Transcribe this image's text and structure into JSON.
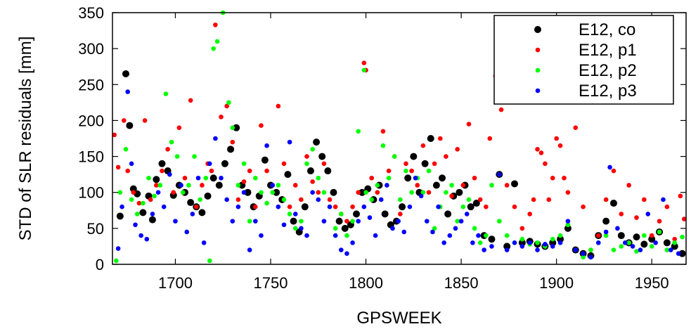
{
  "chart_data": {
    "type": "scatter",
    "title": "",
    "xlabel": "GPSWEEK",
    "ylabel": "STD of SLR residuals [mm]",
    "xlim": [
      1667,
      1968
    ],
    "ylim": [
      0,
      350
    ],
    "xticks": [
      1700,
      1750,
      1800,
      1850,
      1900,
      1950
    ],
    "yticks": [
      0,
      50,
      100,
      150,
      200,
      250,
      300,
      350
    ],
    "grid": false,
    "legend_position": "top-right",
    "series": [
      {
        "name": "E12, co",
        "color": "#000000",
        "x": [
          1671,
          1674,
          1676,
          1678,
          1680,
          1683,
          1686,
          1688,
          1690,
          1693,
          1696,
          1699,
          1702,
          1705,
          1708,
          1711,
          1714,
          1717,
          1720,
          1723,
          1726,
          1729,
          1732,
          1735,
          1738,
          1741,
          1744,
          1747,
          1750,
          1753,
          1756,
          1759,
          1762,
          1765,
          1768,
          1771,
          1774,
          1777,
          1780,
          1783,
          1786,
          1789,
          1792,
          1795,
          1798,
          1801,
          1804,
          1807,
          1810,
          1813,
          1816,
          1819,
          1822,
          1825,
          1828,
          1831,
          1834,
          1837,
          1840,
          1843,
          1846,
          1849,
          1852,
          1855,
          1858,
          1862,
          1866,
          1870,
          1874,
          1878,
          1882,
          1886,
          1890,
          1894,
          1898,
          1902,
          1906,
          1910,
          1914,
          1918,
          1922,
          1926,
          1930,
          1934,
          1938,
          1942,
          1946,
          1950,
          1954,
          1958,
          1962,
          1966
        ],
        "y": [
          67,
          265,
          193,
          105,
          98,
          72,
          95,
          62,
          118,
          140,
          130,
          96,
          110,
          100,
          86,
          80,
          72,
          95,
          120,
          110,
          140,
          160,
          190,
          110,
          100,
          80,
          95,
          145,
          110,
          100,
          90,
          125,
          60,
          45,
          80,
          130,
          170,
          150,
          130,
          100,
          60,
          50,
          55,
          70,
          100,
          105,
          90,
          110,
          70,
          55,
          60,
          80,
          120,
          150,
          100,
          140,
          175,
          110,
          120,
          70,
          95,
          100,
          110,
          80,
          85,
          40,
          35,
          125,
          25,
          112,
          30,
          32,
          28,
          25,
          30,
          35,
          50,
          20,
          15,
          12,
          40,
          60,
          85,
          40,
          30,
          38,
          28,
          35,
          45,
          30,
          25,
          15
        ]
      },
      {
        "name": "E12, p1",
        "color": "#ff0000",
        "x": [
          1668,
          1670,
          1673,
          1675,
          1678,
          1681,
          1684,
          1687,
          1690,
          1693,
          1696,
          1699,
          1702,
          1705,
          1708,
          1711,
          1714,
          1717,
          1719,
          1721,
          1724,
          1727,
          1730,
          1733,
          1736,
          1739,
          1742,
          1745,
          1748,
          1751,
          1754,
          1757,
          1760,
          1763,
          1766,
          1769,
          1772,
          1775,
          1778,
          1781,
          1784,
          1787,
          1790,
          1793,
          1796,
          1799,
          1800,
          1803,
          1806,
          1809,
          1812,
          1815,
          1818,
          1821,
          1824,
          1827,
          1830,
          1833,
          1836,
          1839,
          1842,
          1845,
          1848,
          1851,
          1854,
          1857,
          1860,
          1863,
          1865,
          1868,
          1871,
          1874,
          1878,
          1882,
          1886,
          1888,
          1890,
          1892,
          1894,
          1896,
          1898,
          1900,
          1902,
          1904,
          1906,
          1910,
          1914,
          1918,
          1922,
          1926,
          1930,
          1934,
          1938,
          1942,
          1946,
          1950,
          1954,
          1958,
          1962,
          1965,
          1967
        ],
        "y": [
          180,
          135,
          200,
          130,
          100,
          85,
          200,
          90,
          110,
          130,
          160,
          100,
          190,
          120,
          228,
          80,
          110,
          140,
          130,
          333,
          205,
          220,
          170,
          90,
          115,
          130,
          80,
          193,
          130,
          110,
          220,
          140,
          80,
          110,
          90,
          150,
          115,
          100,
          140,
          90,
          80,
          70,
          60,
          80,
          100,
          280,
          270,
          120,
          100,
          185,
          130,
          150,
          70,
          140,
          130,
          110,
          165,
          100,
          140,
          175,
          150,
          95,
          160,
          110,
          195,
          120,
          90,
          80,
          175,
          262,
          215,
          110,
          80,
          50,
          70,
          90,
          160,
          155,
          140,
          90,
          120,
          175,
          165,
          120,
          100,
          190,
          80,
          20,
          40,
          90,
          130,
          70,
          110,
          65,
          90,
          40,
          60,
          80,
          35,
          95,
          63
        ]
      },
      {
        "name": "E12, p2",
        "color": "#00ff00",
        "x": [
          1669,
          1671,
          1674,
          1677,
          1680,
          1683,
          1686,
          1689,
          1692,
          1695,
          1698,
          1701,
          1704,
          1707,
          1710,
          1713,
          1716,
          1718,
          1720,
          1722,
          1725,
          1728,
          1730,
          1733,
          1736,
          1739,
          1742,
          1745,
          1748,
          1751,
          1754,
          1757,
          1760,
          1763,
          1766,
          1769,
          1772,
          1775,
          1778,
          1781,
          1784,
          1787,
          1790,
          1793,
          1796,
          1799,
          1800,
          1803,
          1806,
          1809,
          1812,
          1815,
          1818,
          1821,
          1824,
          1827,
          1830,
          1833,
          1836,
          1839,
          1842,
          1845,
          1848,
          1851,
          1854,
          1857,
          1860,
          1863,
          1866,
          1870,
          1874,
          1878,
          1882,
          1886,
          1890,
          1894,
          1898,
          1902,
          1906,
          1910,
          1914,
          1918,
          1922,
          1926,
          1930,
          1934,
          1938,
          1942,
          1946,
          1950,
          1954,
          1958,
          1962,
          1966
        ],
        "y": [
          5,
          100,
          160,
          90,
          70,
          85,
          120,
          95,
          110,
          237,
          170,
          150,
          100,
          110,
          150,
          90,
          120,
          5,
          300,
          310,
          350,
          225,
          190,
          110,
          140,
          60,
          120,
          100,
          85,
          100,
          110,
          90,
          70,
          50,
          60,
          140,
          160,
          120,
          100,
          80,
          50,
          70,
          40,
          60,
          185,
          270,
          100,
          90,
          110,
          165,
          120,
          150,
          90,
          130,
          100,
          120,
          100,
          130,
          50,
          80,
          100,
          110,
          60,
          80,
          90,
          50,
          30,
          40,
          110,
          60,
          40,
          30,
          35,
          28,
          30,
          25,
          35,
          40,
          55,
          20,
          10,
          20,
          30,
          40,
          20,
          25,
          30,
          18,
          40,
          25,
          45,
          20,
          30,
          38
        ]
      },
      {
        "name": "E12, p3",
        "color": "#0000ff",
        "x": [
          1670,
          1672,
          1675,
          1677,
          1679,
          1682,
          1685,
          1688,
          1691,
          1694,
          1697,
          1700,
          1703,
          1706,
          1709,
          1712,
          1715,
          1718,
          1721,
          1724,
          1727,
          1730,
          1733,
          1736,
          1739,
          1742,
          1745,
          1748,
          1751,
          1754,
          1757,
          1760,
          1763,
          1766,
          1769,
          1772,
          1775,
          1778,
          1781,
          1784,
          1787,
          1790,
          1793,
          1796,
          1799,
          1802,
          1805,
          1808,
          1811,
          1814,
          1817,
          1820,
          1823,
          1826,
          1829,
          1832,
          1835,
          1838,
          1841,
          1844,
          1847,
          1850,
          1853,
          1856,
          1859,
          1862,
          1866,
          1870,
          1874,
          1878,
          1882,
          1886,
          1890,
          1894,
          1898,
          1902,
          1906,
          1910,
          1914,
          1918,
          1922,
          1926,
          1928,
          1932,
          1936,
          1940,
          1944,
          1948,
          1952,
          1956,
          1960,
          1964
        ],
        "y": [
          22,
          80,
          240,
          140,
          55,
          40,
          35,
          70,
          100,
          80,
          125,
          60,
          110,
          45,
          70,
          120,
          30,
          140,
          175,
          120,
          90,
          60,
          80,
          100,
          20,
          60,
          40,
          165,
          110,
          80,
          55,
          170,
          70,
          50,
          40,
          100,
          90,
          60,
          80,
          40,
          20,
          15,
          30,
          60,
          80,
          65,
          40,
          90,
          110,
          50,
          60,
          45,
          80,
          120,
          95,
          60,
          45,
          80,
          30,
          40,
          50,
          60,
          70,
          30,
          40,
          20,
          25,
          125,
          20,
          30,
          25,
          30,
          20,
          28,
          25,
          30,
          60,
          20,
          15,
          10,
          30,
          45,
          135,
          50,
          30,
          25,
          20,
          70,
          30,
          90,
          20,
          15
        ]
      }
    ]
  }
}
